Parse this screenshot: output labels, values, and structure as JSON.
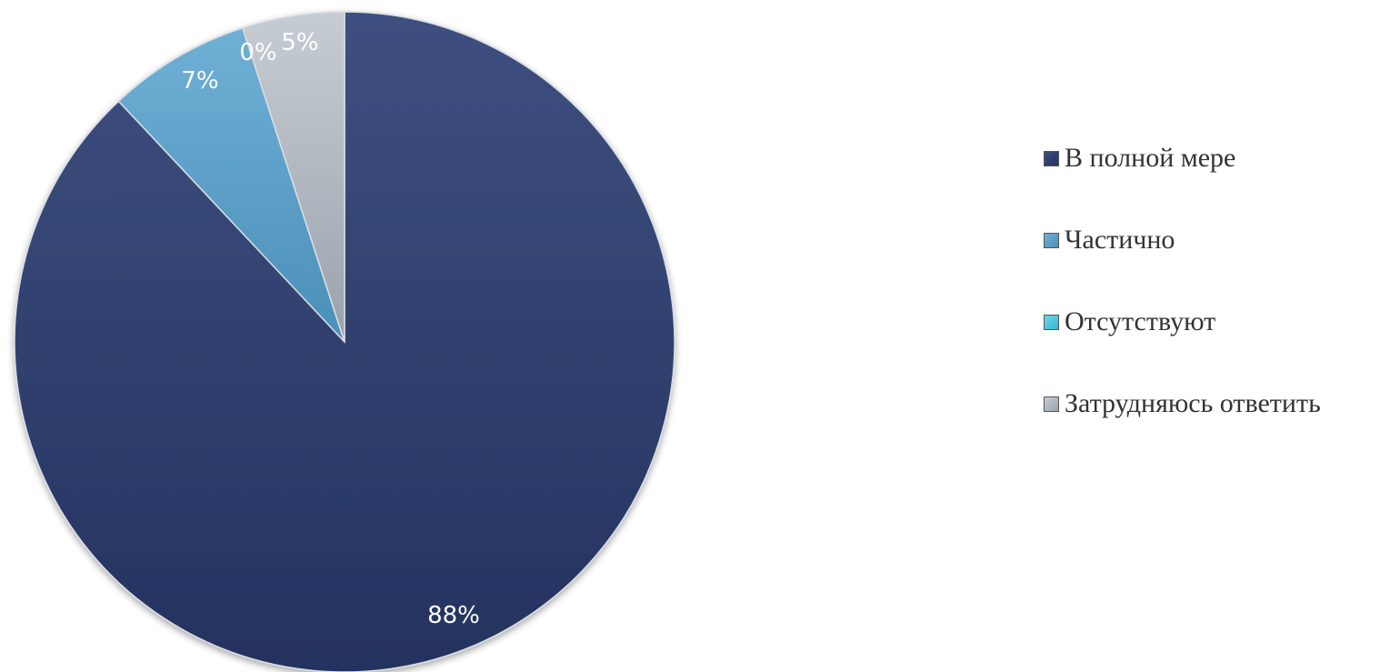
{
  "chart_data": {
    "type": "pie",
    "title": "",
    "legend_position": "right",
    "slices": [
      {
        "label": "В полной мере",
        "value": 88,
        "data_label": "88%",
        "color": "#24325e",
        "color_light": "#3e4f80"
      },
      {
        "label": "Частично",
        "value": 7,
        "data_label": "7%",
        "color": "#4a8fb8",
        "color_light": "#6fb0d6"
      },
      {
        "label": "Отсутствуют",
        "value": 0,
        "data_label": "0%",
        "color": "#35b6d0",
        "color_light": "#6fd6e8"
      },
      {
        "label": "Затрудняюсь ответить",
        "value": 5,
        "data_label": "5%",
        "color": "#9aa3ad",
        "color_light": "#c6ccd3"
      }
    ]
  }
}
